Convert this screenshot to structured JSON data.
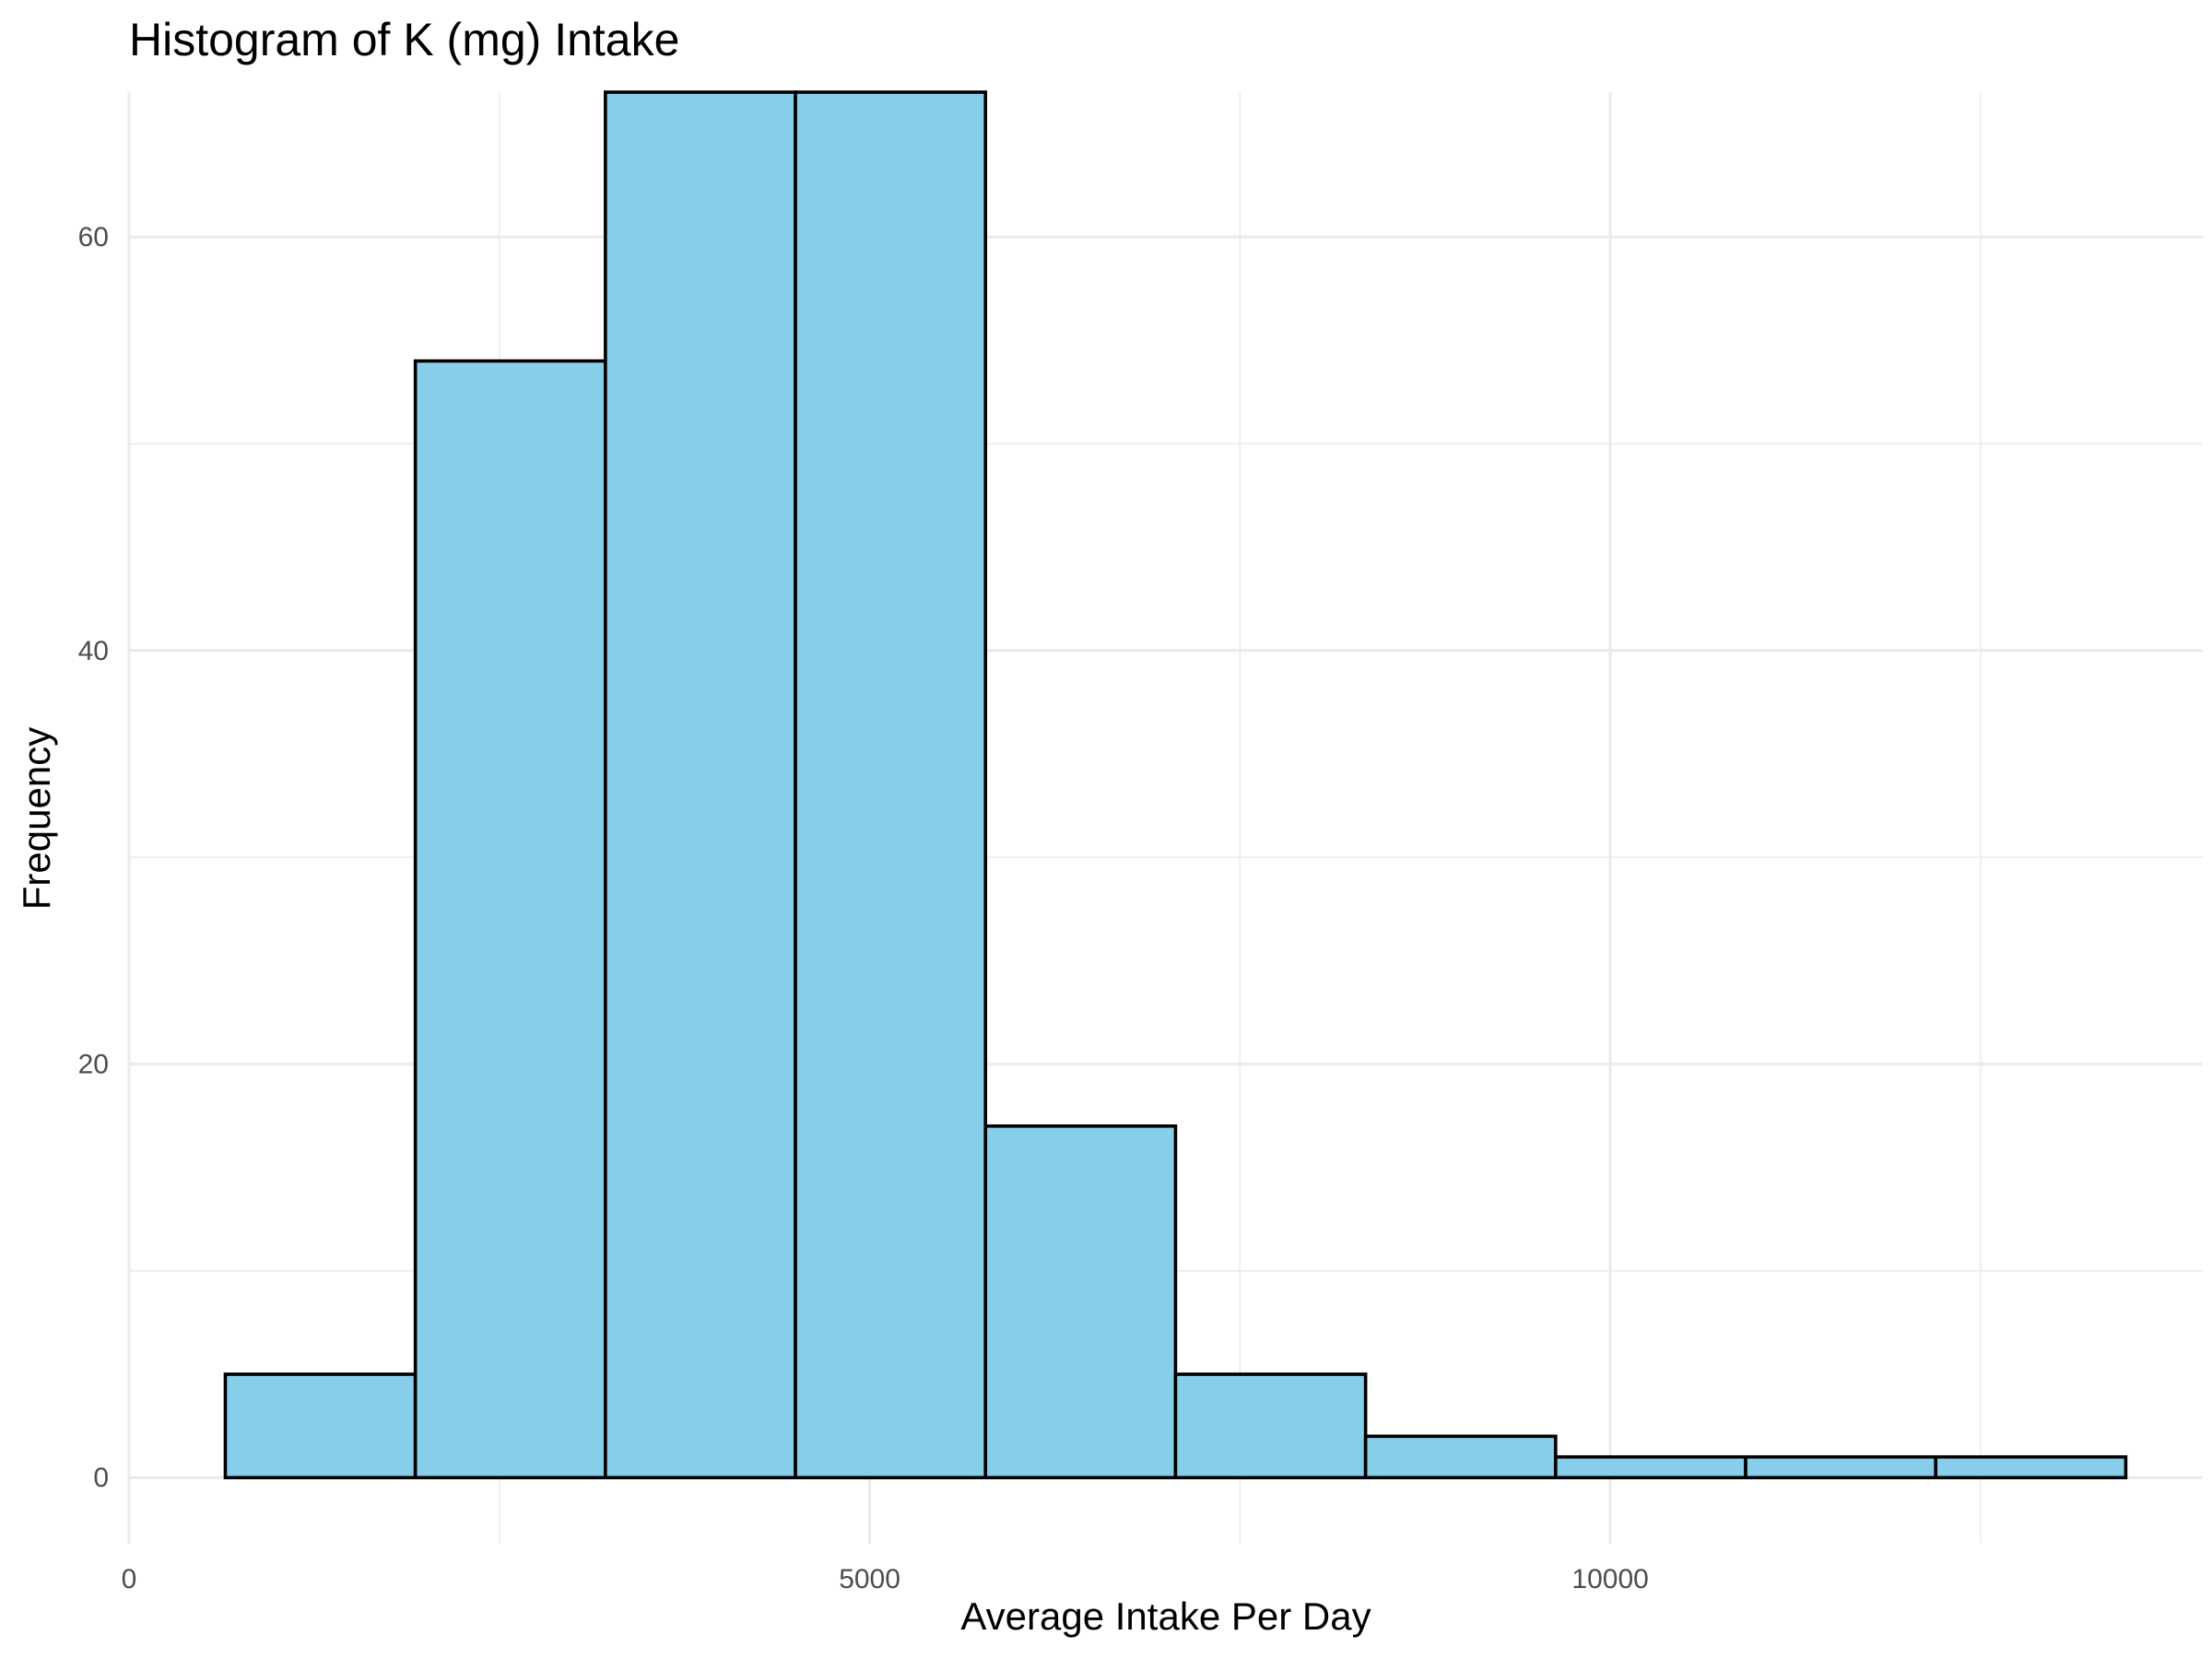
{
  "chart_data": {
    "type": "bar",
    "title": "Histogram of K (mg) Intake",
    "xlabel": "Average Intake Per Day",
    "ylabel": "Frequency",
    "bins": [
      {
        "start": 650,
        "end": 1933,
        "count": 5
      },
      {
        "start": 1933,
        "end": 3216,
        "count": 54
      },
      {
        "start": 3216,
        "end": 4499,
        "count": 67
      },
      {
        "start": 4499,
        "end": 5782,
        "count": 67
      },
      {
        "start": 5782,
        "end": 7065,
        "count": 17
      },
      {
        "start": 7065,
        "end": 8348,
        "count": 5
      },
      {
        "start": 8348,
        "end": 9631,
        "count": 2
      },
      {
        "start": 9631,
        "end": 10914,
        "count": 1
      },
      {
        "start": 10914,
        "end": 12197,
        "count": 1
      },
      {
        "start": 12197,
        "end": 13480,
        "count": 1
      }
    ],
    "xlim": [
      0,
      14000
    ],
    "ylim": [
      -3.2,
      67
    ],
    "x_ticks": [
      0,
      5000,
      10000
    ],
    "x_tick_labels": [
      "0",
      "5000",
      "10000"
    ],
    "x_minor_ticks": [
      2500,
      7500,
      12500
    ],
    "y_ticks": [
      0,
      20,
      40,
      60
    ],
    "y_tick_labels": [
      "0",
      "20",
      "40",
      "60"
    ],
    "y_minor_ticks": [
      10,
      30,
      50
    ],
    "grid": true,
    "bar_fill": "#87CEEB",
    "bar_stroke": "#000000",
    "grid_color": "#ebebeb"
  }
}
